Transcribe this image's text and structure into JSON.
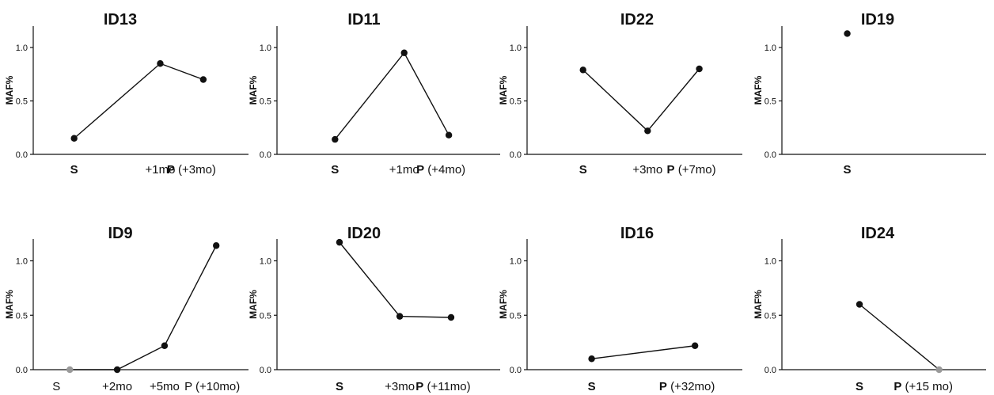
{
  "chart_data": [
    {
      "type": "line",
      "title": "ID13",
      "ylabel": "MAF%",
      "ylim": [
        0,
        1.2
      ],
      "yticks": [
        "0.0",
        "0.5",
        "1.0"
      ],
      "x": [
        {
          "bold": "S",
          "rest": ""
        },
        {
          "bold": "",
          "rest": "+1mo"
        },
        {
          "bold": "P",
          "rest": " (+3mo)"
        }
      ],
      "values": [
        0.15,
        0.85,
        0.7
      ],
      "point_colors": [
        "#111111",
        "#111111",
        "#111111"
      ]
    },
    {
      "type": "line",
      "title": "ID11",
      "ylabel": "MAF%",
      "ylim": [
        0,
        1.2
      ],
      "yticks": [
        "0.0",
        "0.5",
        "1.0"
      ],
      "x": [
        {
          "bold": "S",
          "rest": ""
        },
        {
          "bold": "",
          "rest": "+1mo"
        },
        {
          "bold": "P",
          "rest": " (+4mo)"
        }
      ],
      "values": [
        0.14,
        0.95,
        0.18
      ],
      "point_colors": [
        "#111111",
        "#111111",
        "#111111"
      ]
    },
    {
      "type": "line",
      "title": "ID22",
      "ylabel": "MAF%",
      "ylim": [
        0,
        1.2
      ],
      "yticks": [
        "0.0",
        "0.5",
        "1.0"
      ],
      "x": [
        {
          "bold": "S",
          "rest": ""
        },
        {
          "bold": "",
          "rest": "+3mo"
        },
        {
          "bold": "P",
          "rest": " (+7mo)"
        }
      ],
      "values": [
        0.79,
        0.22,
        0.8
      ],
      "point_colors": [
        "#111111",
        "#111111",
        "#111111"
      ]
    },
    {
      "type": "line",
      "title": "ID19",
      "ylabel": "MAF%",
      "ylim": [
        0,
        1.2
      ],
      "yticks": [
        "0.0",
        "0.5",
        "1.0"
      ],
      "x": [
        {
          "bold": "S",
          "rest": ""
        }
      ],
      "values": [
        1.13
      ],
      "point_colors": [
        "#111111"
      ]
    },
    {
      "type": "line",
      "title": "ID9",
      "ylabel": "MAF%",
      "ylim": [
        0,
        1.2
      ],
      "yticks": [
        "0.0",
        "0.5",
        "1.0"
      ],
      "x": [
        {
          "bold": "",
          "rest": "S"
        },
        {
          "bold": "",
          "rest": "+2mo"
        },
        {
          "bold": "",
          "rest": "+5mo"
        },
        {
          "bold": "",
          "rest": "P (+10mo)"
        }
      ],
      "values": [
        0.0,
        0.0,
        0.22,
        1.14
      ],
      "point_colors": [
        "#999999",
        "#111111",
        "#111111",
        "#111111"
      ]
    },
    {
      "type": "line",
      "title": "ID20",
      "ylabel": "MAF%",
      "ylim": [
        0,
        1.2
      ],
      "yticks": [
        "0.0",
        "0.5",
        "1.0"
      ],
      "x": [
        {
          "bold": "S",
          "rest": ""
        },
        {
          "bold": "",
          "rest": "+3mo"
        },
        {
          "bold": "P",
          "rest": " (+11mo)"
        }
      ],
      "values": [
        1.17,
        0.49,
        0.48
      ],
      "point_colors": [
        "#111111",
        "#111111",
        "#111111"
      ]
    },
    {
      "type": "line",
      "title": "ID16",
      "ylabel": "MAF%",
      "ylim": [
        0,
        1.2
      ],
      "yticks": [
        "0.0",
        "0.5",
        "1.0"
      ],
      "x": [
        {
          "bold": "S",
          "rest": ""
        },
        {
          "bold": "P",
          "rest": " (+32mo)"
        }
      ],
      "values": [
        0.1,
        0.22
      ],
      "point_colors": [
        "#111111",
        "#111111"
      ]
    },
    {
      "type": "line",
      "title": "ID24",
      "ylabel": "MAF%",
      "ylim": [
        0,
        1.2
      ],
      "yticks": [
        "0.0",
        "0.5",
        "1.0"
      ],
      "x": [
        {
          "bold": "S",
          "rest": ""
        },
        {
          "bold": "P",
          "rest": " (+15 mo)"
        }
      ],
      "values": [
        0.6,
        0.0
      ],
      "point_colors": [
        "#111111",
        "#999999"
      ]
    }
  ]
}
